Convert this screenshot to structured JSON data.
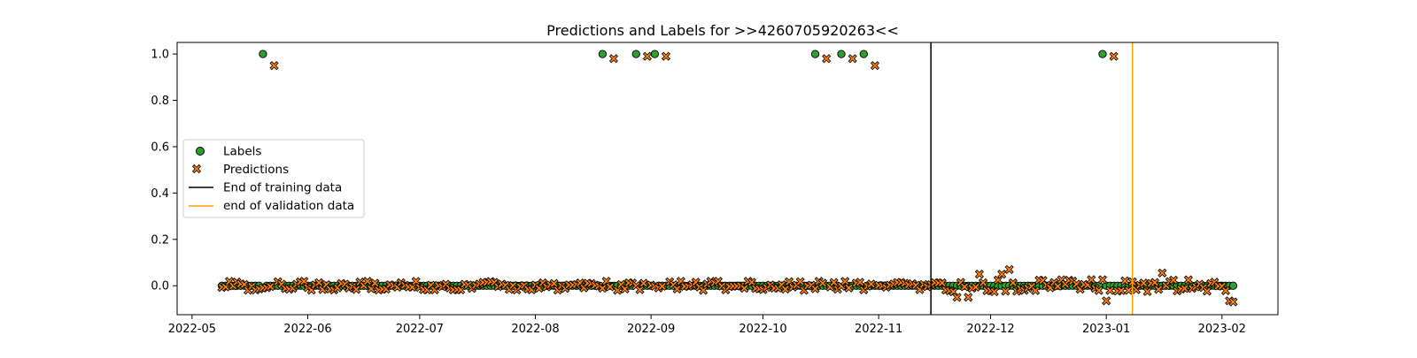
{
  "chart_data": {
    "type": "scatter",
    "title": "Predictions and Labels for >>4260705920263<<",
    "xlabel": "",
    "ylabel": "",
    "x_range": [
      "2022-04-27",
      "2023-02-16"
    ],
    "ylim": [
      -0.125,
      1.05
    ],
    "x_ticks": [
      "2022-05",
      "2022-06",
      "2022-07",
      "2022-08",
      "2022-09",
      "2022-10",
      "2022-11",
      "2022-12",
      "2023-01",
      "2023-02"
    ],
    "y_ticks": [
      "0.0",
      "0.2",
      "0.4",
      "0.6",
      "0.8",
      "1.0"
    ],
    "grid": false,
    "legend_position": "center-left",
    "series": [
      {
        "name": "Labels",
        "marker": "circle",
        "color": "#2ca02c",
        "dates_start": "2022-05-09",
        "dates_end": "2023-02-04",
        "baseline_value": 0,
        "positives": [
          "2022-05-20",
          "2022-08-19",
          "2022-08-28",
          "2022-09-02",
          "2022-10-15",
          "2022-10-22",
          "2022-10-28",
          "2022-12-31"
        ]
      },
      {
        "name": "Predictions",
        "marker": "X",
        "color": "#ff7f0e",
        "dates_start": "2022-05-09",
        "dates_end": "2023-02-04",
        "noise_amplitude": 0.02,
        "highlights": [
          {
            "x": "2022-05-23",
            "y": 0.95
          },
          {
            "x": "2022-08-22",
            "y": 0.98
          },
          {
            "x": "2022-08-31",
            "y": 0.99
          },
          {
            "x": "2022-09-05",
            "y": 0.99
          },
          {
            "x": "2022-10-18",
            "y": 0.98
          },
          {
            "x": "2022-10-25",
            "y": 0.98
          },
          {
            "x": "2022-10-31",
            "y": 0.95
          },
          {
            "x": "2023-01-03",
            "y": 0.99
          },
          {
            "x": "2022-12-06",
            "y": 0.07
          },
          {
            "x": "2022-12-04",
            "y": 0.05
          },
          {
            "x": "2022-11-28",
            "y": 0.05
          },
          {
            "x": "2023-01-16",
            "y": 0.055
          },
          {
            "x": "2022-11-25",
            "y": -0.05
          },
          {
            "x": "2022-11-22",
            "y": -0.05
          },
          {
            "x": "2023-02-04",
            "y": -0.07
          },
          {
            "x": "2023-02-03",
            "y": -0.065
          },
          {
            "x": "2023-01-01",
            "y": -0.065
          }
        ]
      },
      {
        "name": "End of training data",
        "type": "vline",
        "x": "2022-11-15",
        "color": "#000000"
      },
      {
        "name": "end of validation data",
        "type": "vline",
        "x": "2023-01-08",
        "color": "#ffa500"
      }
    ]
  }
}
